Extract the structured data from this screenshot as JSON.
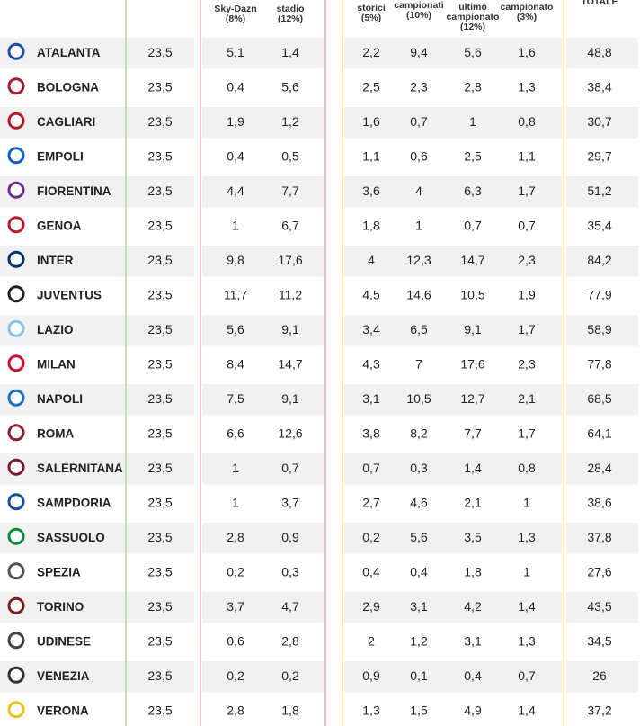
{
  "table": {
    "headers": [
      [],
      [],
      [
        "Sky-Dazn",
        "(8%)"
      ],
      [
        "stadio",
        "(12%)"
      ],
      [
        "storici",
        "(5%)"
      ],
      [
        "campionati",
        "(10%)"
      ],
      [
        "ultimo",
        "campionato",
        "(12%)"
      ],
      [
        "campionato",
        "(3%)"
      ],
      [
        "TOTALE"
      ]
    ],
    "rows": [
      [
        "ATALANTA",
        "23,5",
        "5,1",
        "1,4",
        "2,2",
        "9,4",
        "5,6",
        "1,6",
        "48,8"
      ],
      [
        "BOLOGNA",
        "23,5",
        "0,4",
        "5,6",
        "2,5",
        "2,3",
        "2,8",
        "1,3",
        "38,4"
      ],
      [
        "CAGLIARI",
        "23,5",
        "1,9",
        "1,2",
        "1,6",
        "0,7",
        "1",
        "0,8",
        "30,7"
      ],
      [
        "EMPOLI",
        "23,5",
        "0,4",
        "0,5",
        "1,1",
        "0,6",
        "2,5",
        "1,1",
        "29,7"
      ],
      [
        "FIORENTINA",
        "23,5",
        "4,4",
        "7,7",
        "3,6",
        "4",
        "6,3",
        "1,7",
        "51,2"
      ],
      [
        "GENOA",
        "23,5",
        "1",
        "6,7",
        "1,8",
        "1",
        "0,7",
        "0,7",
        "35,4"
      ],
      [
        "INTER",
        "23,5",
        "9,8",
        "17,6",
        "4",
        "12,3",
        "14,7",
        "2,3",
        "84,2"
      ],
      [
        "JUVENTUS",
        "23,5",
        "11,7",
        "11,2",
        "4,5",
        "14,6",
        "10,5",
        "1,9",
        "77,9"
      ],
      [
        "LAZIO",
        "23,5",
        "5,6",
        "9,1",
        "3,4",
        "6,5",
        "9,1",
        "1,7",
        "58,9"
      ],
      [
        "MILAN",
        "23,5",
        "8,4",
        "14,7",
        "4,3",
        "7",
        "17,6",
        "2,3",
        "77,8"
      ],
      [
        "NAPOLI",
        "23,5",
        "7,5",
        "9,1",
        "3,1",
        "10,5",
        "12,7",
        "2,1",
        "68,5"
      ],
      [
        "ROMA",
        "23,5",
        "6,6",
        "12,6",
        "3,8",
        "8,2",
        "7,7",
        "1,7",
        "64,1"
      ],
      [
        "SALERNITANA",
        "23,5",
        "1",
        "0,7",
        "0,7",
        "0,3",
        "1,4",
        "0,8",
        "28,4"
      ],
      [
        "SAMPDORIA",
        "23,5",
        "1",
        "3,7",
        "2,7",
        "4,6",
        "2,1",
        "1",
        "38,6"
      ],
      [
        "SASSUOLO",
        "23,5",
        "2,8",
        "0,9",
        "0,2",
        "5,6",
        "3,5",
        "1,3",
        "37,8"
      ],
      [
        "SPEZIA",
        "23,5",
        "0,2",
        "0,3",
        "0,4",
        "0,4",
        "1,8",
        "1",
        "27,6"
      ],
      [
        "TORINO",
        "23,5",
        "3,7",
        "4,7",
        "2,9",
        "3,1",
        "4,2",
        "1,4",
        "43,5"
      ],
      [
        "UDINESE",
        "23,5",
        "0,6",
        "2,8",
        "2",
        "1,2",
        "3,1",
        "1,3",
        "34,5"
      ],
      [
        "VENEZIA",
        "23,5",
        "0,2",
        "0,2",
        "0,9",
        "0,1",
        "0,4",
        "0,7",
        "26"
      ],
      [
        "VERONA",
        "23,5",
        "2,8",
        "1,8",
        "1,3",
        "1,5",
        "4,9",
        "1,4",
        "37,2"
      ]
    ]
  }
}
